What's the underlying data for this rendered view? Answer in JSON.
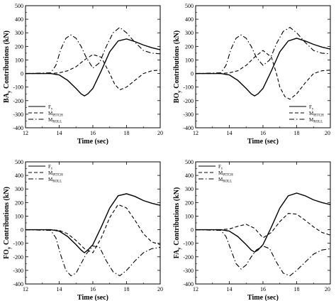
{
  "chart_data": [
    {
      "type": "line",
      "panel_id": "BA",
      "xlabel": "Time (sec)",
      "ylabel_main": "BA",
      "ylabel_sub": "y",
      "ylabel_rest": " Contributions (kN)",
      "xlim": [
        12,
        20
      ],
      "ylim": [
        -400,
        500
      ],
      "xticks": [
        "12",
        "14",
        "16",
        "18",
        "20"
      ],
      "yticks": [
        "-400",
        "-300",
        "-200",
        "-100",
        "0",
        "100",
        "200",
        "300",
        "400",
        "500"
      ],
      "legend_placement": "bottom-left",
      "series": [
        {
          "name": "Fy",
          "main": "F",
          "sub": "y",
          "dash": "solid",
          "x": [
            12,
            13.5,
            14,
            14.5,
            15,
            15.3,
            15.5,
            15.7,
            16,
            16.5,
            17,
            17.5,
            18,
            18.5,
            19,
            19.5,
            20
          ],
          "y": [
            0,
            0,
            -10,
            -50,
            -110,
            -150,
            -165,
            -150,
            -110,
            20,
            160,
            240,
            255,
            235,
            210,
            190,
            175
          ]
        },
        {
          "name": "MPITCH",
          "main": "M",
          "sub": "PITCH",
          "dash": "dashed",
          "x": [
            12,
            13.5,
            14,
            14.5,
            15,
            15.5,
            16,
            16.5,
            17,
            17.3,
            17.6,
            18,
            18.5,
            19,
            19.5,
            20
          ],
          "y": [
            0,
            0,
            5,
            20,
            50,
            100,
            140,
            120,
            0,
            -80,
            -120,
            -100,
            -50,
            0,
            20,
            25
          ]
        },
        {
          "name": "MROLL",
          "main": "M",
          "sub": "ROLL",
          "dash": "dashdot",
          "x": [
            12,
            13.5,
            13.8,
            14.1,
            14.4,
            14.7,
            15,
            15.3,
            15.6,
            16,
            16.4,
            16.8,
            17.2,
            17.6,
            18,
            18.5,
            19,
            19.5,
            20
          ],
          "y": [
            0,
            5,
            60,
            180,
            260,
            285,
            260,
            200,
            120,
            40,
            80,
            200,
            300,
            340,
            300,
            230,
            170,
            150,
            145
          ]
        }
      ]
    },
    {
      "type": "line",
      "panel_id": "BO",
      "xlabel": "Time (sec)",
      "ylabel_main": "BO",
      "ylabel_sub": "y",
      "ylabel_rest": " Contributions (kN)",
      "xlim": [
        12,
        20
      ],
      "ylim": [
        -400,
        500
      ],
      "xticks": [
        "12",
        "14",
        "16",
        "18",
        "20"
      ],
      "yticks": [
        "-400",
        "-300",
        "-200",
        "-100",
        "0",
        "100",
        "200",
        "300",
        "400",
        "500"
      ],
      "legend_placement": "bottom-right",
      "series": [
        {
          "name": "Fy",
          "main": "F",
          "sub": "y",
          "dash": "solid",
          "x": [
            12,
            13.5,
            14,
            14.5,
            15,
            15.3,
            15.5,
            15.7,
            16,
            16.5,
            17,
            17.5,
            18,
            18.5,
            19,
            19.5,
            20
          ],
          "y": [
            0,
            0,
            -10,
            -50,
            -110,
            -150,
            -165,
            -150,
            -110,
            20,
            160,
            240,
            260,
            240,
            215,
            195,
            180
          ]
        },
        {
          "name": "MPITCH",
          "main": "M",
          "sub": "PITCH",
          "dash": "dashed",
          "x": [
            12,
            13.5,
            14,
            14.5,
            15,
            15.5,
            16,
            16.5,
            16.8,
            17,
            17.3,
            17.6,
            18,
            18.5,
            19,
            19.5,
            20
          ],
          "y": [
            0,
            0,
            5,
            20,
            60,
            120,
            170,
            120,
            0,
            -100,
            -170,
            -190,
            -150,
            -70,
            0,
            20,
            25
          ]
        },
        {
          "name": "MROLL",
          "main": "M",
          "sub": "ROLL",
          "dash": "dashdot",
          "x": [
            12,
            13.5,
            13.8,
            14.1,
            14.4,
            14.7,
            15,
            15.3,
            15.6,
            16,
            16.4,
            16.8,
            17.2,
            17.6,
            18,
            18.5,
            19,
            19.5,
            20
          ],
          "y": [
            0,
            5,
            60,
            180,
            260,
            285,
            260,
            200,
            120,
            60,
            100,
            220,
            310,
            340,
            300,
            230,
            170,
            150,
            145
          ]
        }
      ]
    },
    {
      "type": "line",
      "panel_id": "FO",
      "xlabel": "Time (sec)",
      "ylabel_main": "FO",
      "ylabel_sub": "y",
      "ylabel_rest": " Contributions (kN)",
      "xlim": [
        12,
        20
      ],
      "ylim": [
        -400,
        500
      ],
      "xticks": [
        "12",
        "14",
        "16",
        "18",
        "20"
      ],
      "yticks": [
        "-400",
        "-300",
        "-200",
        "-100",
        "0",
        "100",
        "200",
        "300",
        "400",
        "500"
      ],
      "legend_placement": "top-left",
      "series": [
        {
          "name": "Fy",
          "main": "F",
          "sub": "y",
          "dash": "solid",
          "x": [
            12,
            13.5,
            14,
            14.5,
            15,
            15.3,
            15.5,
            15.7,
            16,
            16.5,
            17,
            17.5,
            18,
            18.5,
            19,
            19.5,
            20
          ],
          "y": [
            0,
            0,
            -10,
            -50,
            -110,
            -150,
            -170,
            -150,
            -110,
            20,
            160,
            250,
            265,
            245,
            215,
            195,
            180
          ]
        },
        {
          "name": "MPITCH",
          "main": "M",
          "sub": "PITCH",
          "dash": "dashed",
          "x": [
            12,
            13.5,
            14,
            14.5,
            15,
            15.5,
            16,
            16.5,
            17,
            17.5,
            18,
            18.5,
            19,
            19.5,
            20
          ],
          "y": [
            0,
            0,
            -5,
            -30,
            -80,
            -140,
            -170,
            -60,
            90,
            185,
            160,
            70,
            -30,
            -90,
            -110
          ]
        },
        {
          "name": "MROLL",
          "main": "M",
          "sub": "ROLL",
          "dash": "dashdot",
          "x": [
            12,
            13.5,
            13.8,
            14.1,
            14.4,
            14.7,
            15,
            15.3,
            15.6,
            16,
            16.4,
            16.8,
            17.2,
            17.6,
            18,
            18.5,
            19,
            19.5,
            20
          ],
          "y": [
            0,
            -5,
            -60,
            -190,
            -300,
            -340,
            -320,
            -250,
            -180,
            -120,
            -130,
            -230,
            -310,
            -340,
            -300,
            -230,
            -170,
            -140,
            -130
          ]
        }
      ]
    },
    {
      "type": "line",
      "panel_id": "FA",
      "xlabel": "Time (sec)",
      "ylabel_main": "FA",
      "ylabel_sub": "y",
      "ylabel_rest": " Contributions (kN)",
      "xlim": [
        12,
        20
      ],
      "ylim": [
        -400,
        500
      ],
      "xticks": [
        "12",
        "14",
        "16",
        "18",
        "20"
      ],
      "yticks": [
        "-400",
        "-300",
        "-200",
        "-100",
        "0",
        "100",
        "200",
        "300",
        "400",
        "500"
      ],
      "legend_placement": "top-left",
      "series": [
        {
          "name": "Fy",
          "main": "F",
          "sub": "y",
          "dash": "solid",
          "x": [
            12,
            13.5,
            14,
            14.5,
            15,
            15.3,
            15.5,
            15.7,
            16,
            16.5,
            17,
            17.5,
            18,
            18.5,
            19,
            19.5,
            20
          ],
          "y": [
            0,
            0,
            -10,
            -50,
            -110,
            -150,
            -165,
            -150,
            -110,
            20,
            160,
            250,
            270,
            250,
            220,
            200,
            185
          ]
        },
        {
          "name": "MPITCH",
          "main": "M",
          "sub": "PITCH",
          "dash": "dashed",
          "x": [
            12,
            13.5,
            14,
            14.5,
            15,
            15.5,
            16,
            16.5,
            17,
            17.5,
            18,
            18.5,
            19,
            19.5,
            20
          ],
          "y": [
            0,
            0,
            5,
            25,
            40,
            10,
            -60,
            -20,
            60,
            120,
            115,
            70,
            20,
            -20,
            -40
          ]
        },
        {
          "name": "MROLL",
          "main": "M",
          "sub": "ROLL",
          "dash": "dashdot",
          "x": [
            12,
            13.5,
            13.8,
            14.1,
            14.4,
            14.7,
            15,
            15.3,
            15.6,
            16,
            16.4,
            16.8,
            17.2,
            17.6,
            18,
            18.5,
            19,
            19.5,
            20
          ],
          "y": [
            0,
            -5,
            -50,
            -150,
            -250,
            -290,
            -260,
            -200,
            -150,
            -120,
            -140,
            -240,
            -320,
            -340,
            -300,
            -240,
            -180,
            -150,
            -140
          ]
        }
      ]
    }
  ]
}
